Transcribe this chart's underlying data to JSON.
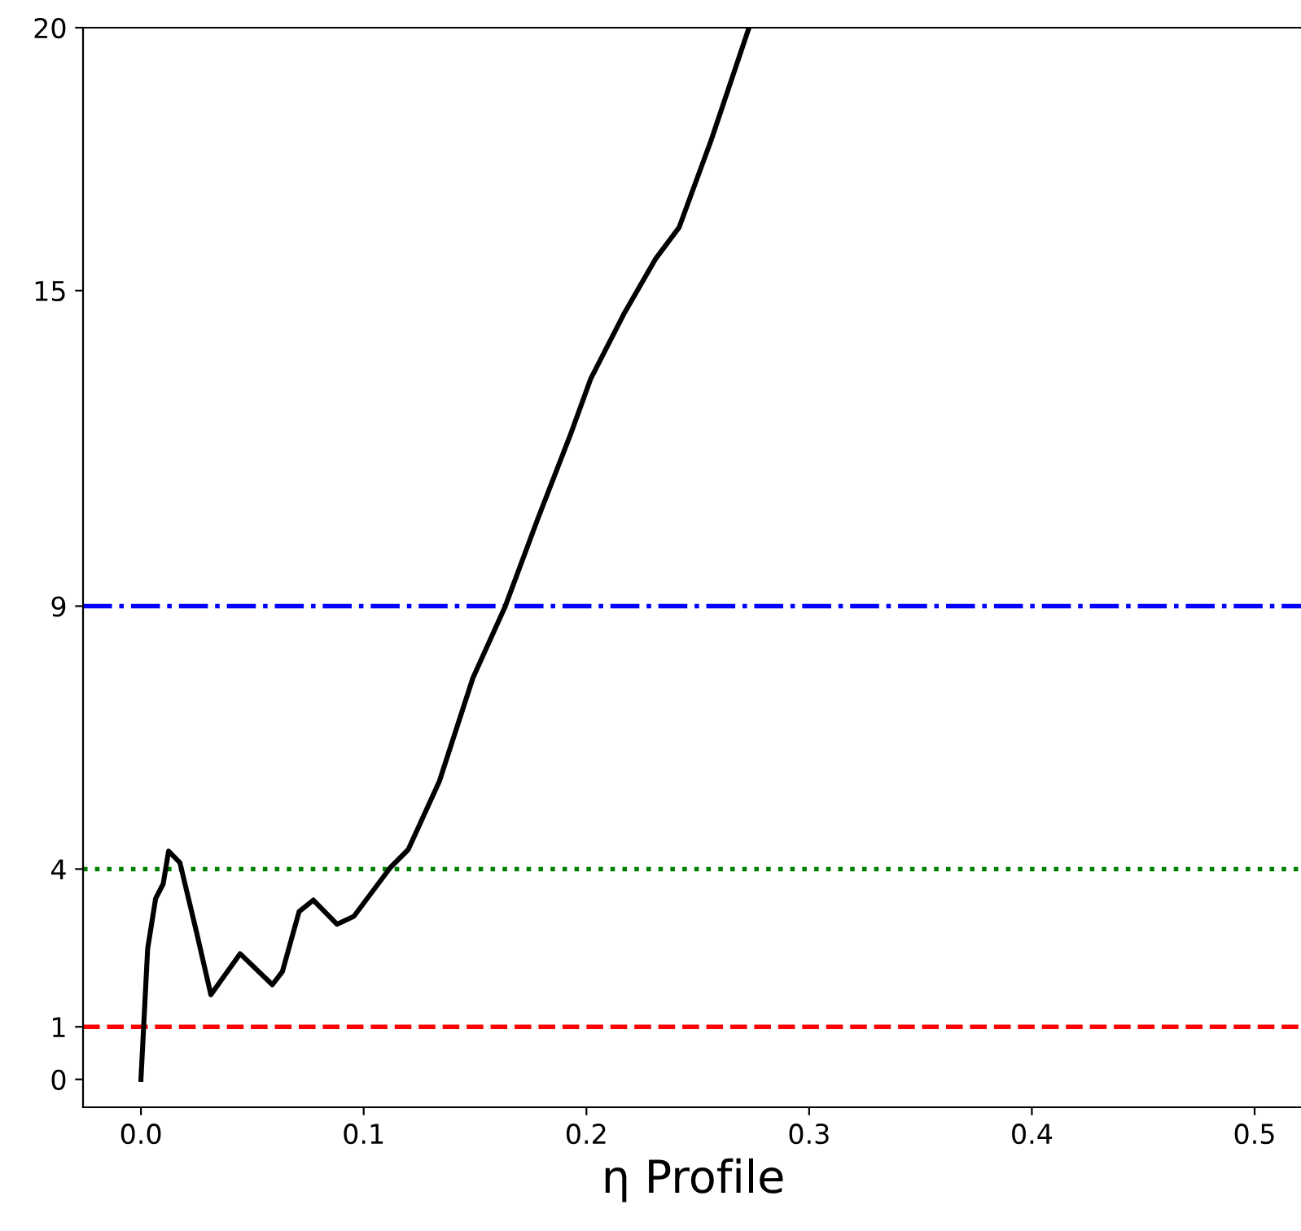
{
  "chart_data": {
    "type": "line",
    "xlabel": "η Profile",
    "series": [
      {
        "color": "#000000",
        "x": [
          0,
          0.003,
          0.0066,
          0.01,
          0.0124,
          0.0175,
          0.025,
          0.0314,
          0.0445,
          0.059,
          0.0635,
          0.071,
          0.0774,
          0.088,
          0.0956,
          0.112,
          0.12,
          0.134,
          0.149,
          0.1635,
          0.178,
          0.193,
          0.202,
          0.217,
          0.231,
          0.2416,
          0.256,
          0.273
        ],
        "values": [
          0,
          2.48,
          3.44,
          3.72,
          4.34,
          4.12,
          2.79,
          1.61,
          2.39,
          1.8,
          2.05,
          3.19,
          3.41,
          2.95,
          3.1,
          4.03,
          4.37,
          5.67,
          7.63,
          8.99,
          10.64,
          12.28,
          13.33,
          14.57,
          15.6,
          16.2,
          17.86,
          20.0
        ]
      }
    ],
    "ref_lines": [
      {
        "axis": "y",
        "value": 1,
        "label": null,
        "color": "#ff0000",
        "line_style": "dashed"
      },
      {
        "axis": "y",
        "value": 4,
        "label": null,
        "color": "#008000",
        "line_style": "dotted"
      },
      {
        "axis": "y",
        "value": 9,
        "label": null,
        "color": "#0000ff",
        "line_style": "dashdot"
      }
    ],
    "xlim": [
      -0.026,
      0.522
    ],
    "ylim": [
      -0.53,
      20
    ],
    "xticks": [
      {
        "value": 0,
        "label": "0.0"
      },
      0.1,
      0.2,
      0.3,
      0.4,
      0.5
    ],
    "yticks": [
      0,
      1,
      4,
      9,
      15,
      20
    ],
    "grid": false,
    "legend": false,
    "marker": "none",
    "line_style": "solid"
  }
}
